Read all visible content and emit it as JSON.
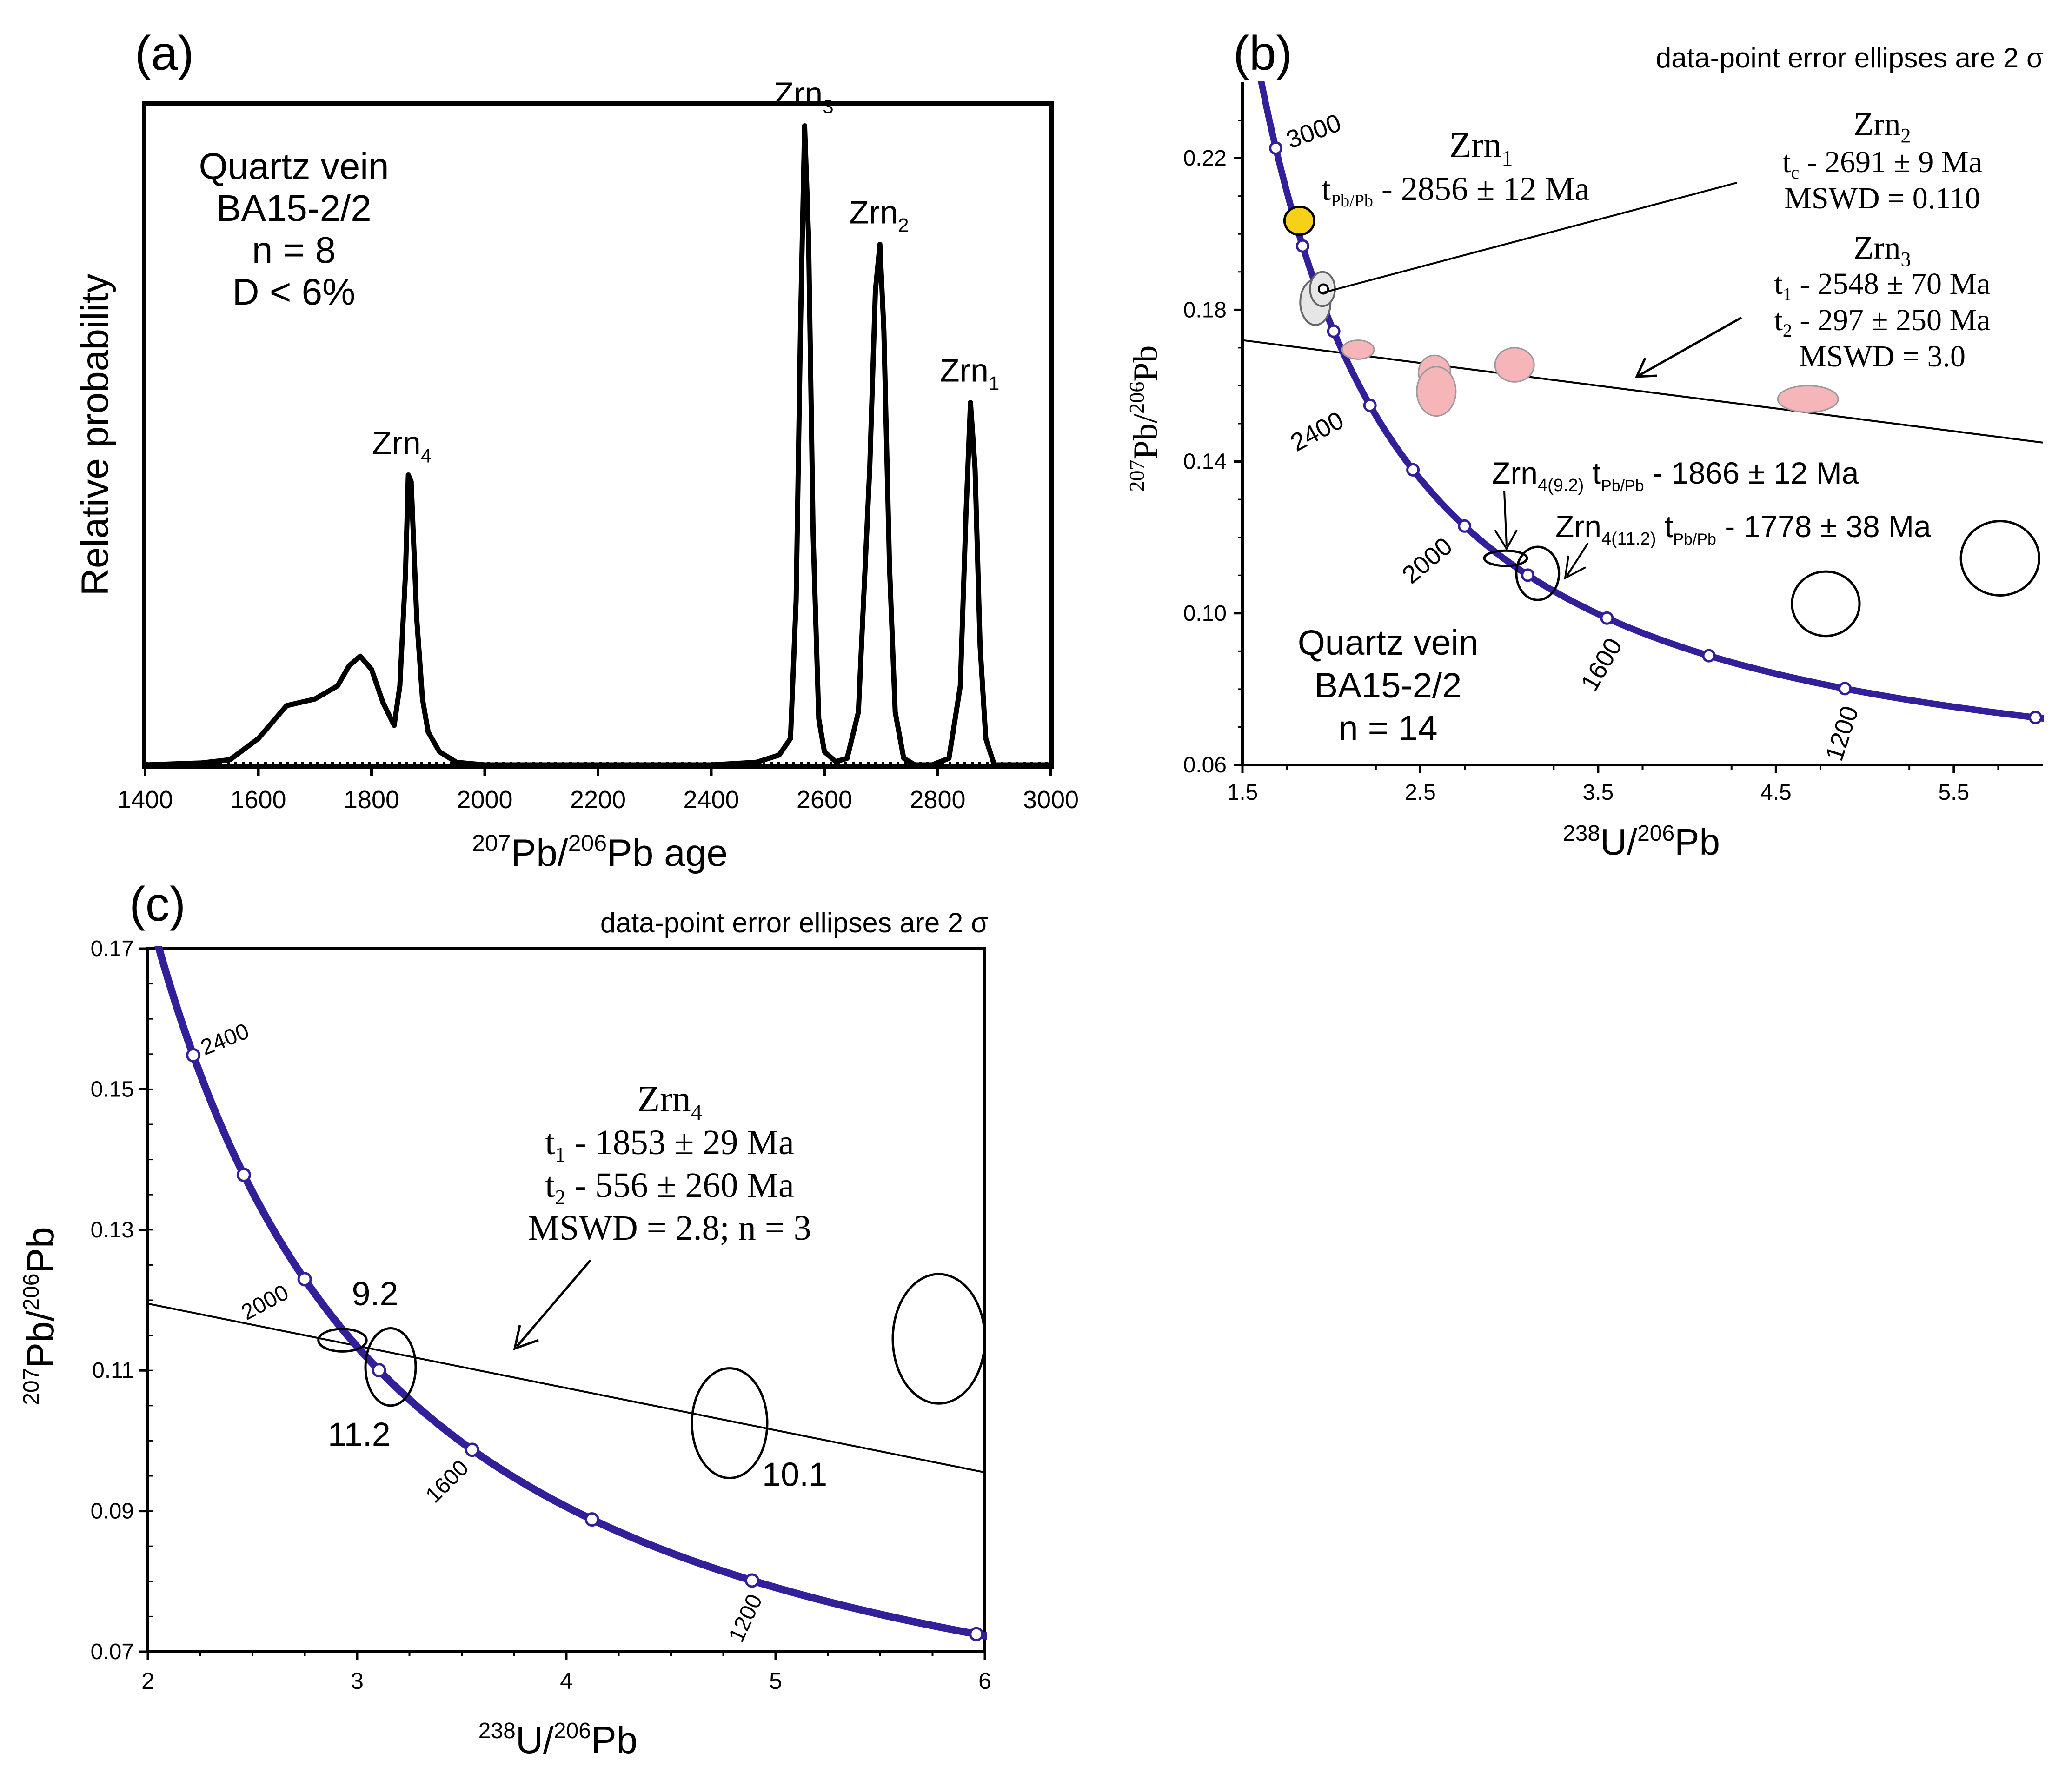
{
  "colors": {
    "curve": "#32209a",
    "pink": "#f6b5b8",
    "yellow": "#f7d117",
    "grey": "#e6e6e6",
    "ink": "#000000"
  },
  "chart_data": [
    {
      "id": "a",
      "type": "line",
      "panel_label": "(a)",
      "xlabel": {
        "sup1": "207",
        "a": "Pb/",
        "sup2": "206",
        "b": "Pb age"
      },
      "ylabel": "Relative probability",
      "xlim": [
        1400,
        3000
      ],
      "x_ticks": [
        1400,
        1600,
        1800,
        2000,
        2200,
        2400,
        2600,
        2800,
        3000
      ],
      "series": [
        {
          "name": "probability density",
          "x": [
            1400,
            1500,
            1550,
            1600,
            1650,
            1700,
            1740,
            1760,
            1780,
            1800,
            1820,
            1840,
            1850,
            1860,
            1865,
            1870,
            1880,
            1890,
            1900,
            1920,
            1950,
            2000,
            2400,
            2480,
            2520,
            2540,
            2550,
            2558,
            2565,
            2572,
            2580,
            2590,
            2600,
            2620,
            2640,
            2660,
            2680,
            2690,
            2698,
            2705,
            2715,
            2725,
            2740,
            2760,
            2790,
            2820,
            2840,
            2850,
            2858,
            2866,
            2875,
            2885,
            2900,
            2950,
            3000
          ],
          "y": [
            0,
            0.003,
            0.008,
            0.04,
            0.09,
            0.1,
            0.12,
            0.15,
            0.165,
            0.145,
            0.095,
            0.06,
            0.12,
            0.29,
            0.44,
            0.43,
            0.22,
            0.1,
            0.05,
            0.02,
            0.004,
            0,
            0,
            0.004,
            0.015,
            0.04,
            0.25,
            0.68,
            0.97,
            0.8,
            0.35,
            0.07,
            0.02,
            0.005,
            0.01,
            0.08,
            0.45,
            0.72,
            0.79,
            0.66,
            0.3,
            0.08,
            0.01,
            0,
            0,
            0.01,
            0.12,
            0.38,
            0.55,
            0.45,
            0.18,
            0.04,
            0,
            0,
            0
          ]
        }
      ],
      "peak_labels": [
        {
          "base": "Zrn",
          "sub": "4",
          "x": 1855,
          "y": 0.44
        },
        {
          "base": "Zrn",
          "sub": "3",
          "x": 2565,
          "y": 0.97
        },
        {
          "base": "Zrn",
          "sub": "2",
          "x": 2698,
          "y": 0.79
        },
        {
          "base": "Zrn",
          "sub": "1",
          "x": 2858,
          "y": 0.55
        }
      ],
      "annotation": [
        "Quartz vein",
        "BA15-2/2",
        "n = 8",
        "D < 6%"
      ]
    },
    {
      "id": "b",
      "type": "scatter",
      "panel_label": "(b)",
      "header": "data-point error ellipses are 2 σ",
      "xlabel": {
        "sup1": "238",
        "a": "U/",
        "sup2": "206",
        "b": "Pb"
      },
      "ylabel": {
        "sup1": "207",
        "a": "Pb/",
        "sup2": "206",
        "b": "Pb"
      },
      "xlim": [
        1.5,
        6.0
      ],
      "ylim": [
        0.06,
        0.24
      ],
      "x_ticks": [
        1.5,
        2.5,
        3.5,
        4.5,
        5.5
      ],
      "y_ticks": [
        0.06,
        0.1,
        0.14,
        0.18,
        0.22
      ],
      "concordia_ages": [
        3000,
        2800,
        2600,
        2400,
        2200,
        2000,
        1800,
        1600,
        1400,
        1200,
        1000
      ],
      "concordia_labels": [
        "3000",
        "2400",
        "2000",
        "1600",
        "1200"
      ],
      "discordia_line": {
        "x": [
          1.5,
          6.0
        ],
        "y": [
          0.172,
          0.145
        ]
      },
      "ellipses_pink": [
        {
          "x": 2.15,
          "y": 0.1695,
          "rx": 0.09,
          "ry": 0.0025
        },
        {
          "x": 2.58,
          "y": 0.1635,
          "rx": 0.09,
          "ry": 0.0045
        },
        {
          "x": 2.59,
          "y": 0.1585,
          "rx": 0.11,
          "ry": 0.0065
        },
        {
          "x": 3.03,
          "y": 0.1655,
          "rx": 0.11,
          "ry": 0.0045
        },
        {
          "x": 4.68,
          "y": 0.1565,
          "rx": 0.17,
          "ry": 0.0035
        }
      ],
      "ellipses_grey": [
        {
          "x": 1.91,
          "y": 0.182,
          "rx": 0.085,
          "ry": 0.006
        },
        {
          "x": 1.95,
          "y": 0.1855,
          "rx": 0.07,
          "ry": 0.0045
        }
      ],
      "point_yellow": {
        "x": 1.82,
        "y": 0.2035
      },
      "ellipses_open": [
        {
          "x": 2.98,
          "y": 0.1145,
          "rx": 0.12,
          "ry": 0.002
        },
        {
          "x": 3.16,
          "y": 0.1105,
          "rx": 0.12,
          "ry": 0.007
        },
        {
          "x": 4.78,
          "y": 0.1025,
          "rx": 0.19,
          "ry": 0.0085
        },
        {
          "x": 5.76,
          "y": 0.1145,
          "rx": 0.22,
          "ry": 0.0098
        }
      ],
      "annotation": [
        "Quartz vein",
        "BA15-2/2",
        "n = 14"
      ],
      "zrn1": {
        "base": "Zrn",
        "sub": "1",
        "t": "t",
        "tsub": "Pb/Pb",
        "value": " - 2856 ± 12 Ma"
      },
      "zrn2": {
        "base": "Zrn",
        "sub": "2",
        "t": "t",
        "tsub": "c",
        "value": " - 2691 ± 9 Ma",
        "mswd": "MSWD = 0.110"
      },
      "zrn3": {
        "base": "Zrn",
        "sub": "3",
        "t1": "t",
        "t1sub": "1",
        "t1value": " - 2548 ± 70 Ma",
        "t2": "t",
        "t2sub": "2",
        "t2value": " - 297 ± 250 Ma",
        "mswd": "MSWD = 3.0"
      },
      "zrn4a": {
        "base": "Zrn",
        "sub": "4(9.2)",
        "t": " t",
        "tsub": "Pb/Pb",
        "value": " - 1866 ± 12 Ma"
      },
      "zrn4b": {
        "base": "Zrn",
        "sub": "4(11.2)",
        "t": " t",
        "tsub": "Pb/Pb",
        "value": " - 1778 ± 38 Ma"
      }
    },
    {
      "id": "c",
      "type": "scatter",
      "panel_label": "(c)",
      "header": "data-point error ellipses are 2 σ",
      "xlabel": {
        "sup1": "238",
        "a": "U/",
        "sup2": "206",
        "b": "Pb"
      },
      "ylabel": {
        "sup1": "207",
        "a": "Pb/",
        "sup2": "206",
        "b": "Pb"
      },
      "xlim": [
        2,
        6
      ],
      "ylim": [
        0.07,
        0.17
      ],
      "x_ticks": [
        2,
        3,
        4,
        5,
        6
      ],
      "y_ticks": [
        0.07,
        0.09,
        0.11,
        0.13,
        0.15,
        0.17
      ],
      "concordia_ages": [
        2400,
        2200,
        2000,
        1800,
        1600,
        1400,
        1200,
        1000
      ],
      "concordia_labels": [
        "2400",
        "2000",
        "1600",
        "1200"
      ],
      "discordia_line": {
        "x": [
          2,
          6
        ],
        "y": [
          0.1195,
          0.0955
        ]
      },
      "ellipses_open": [
        {
          "x": 2.93,
          "y": 0.1143,
          "rx": 0.115,
          "ry": 0.0016,
          "label": "9.2"
        },
        {
          "x": 3.16,
          "y": 0.1105,
          "rx": 0.12,
          "ry": 0.0055,
          "label": "11.2"
        },
        {
          "x": 4.78,
          "y": 0.1025,
          "rx": 0.18,
          "ry": 0.0078,
          "label": "10.1"
        },
        {
          "x": 5.78,
          "y": 0.1145,
          "rx": 0.22,
          "ry": 0.0092,
          "label": ""
        }
      ],
      "zrn4": {
        "base": "Zrn",
        "sub": "4",
        "t1": "t",
        "t1sub": "1",
        "t1value": " - 1853 ± 29 Ma",
        "t2": "t",
        "t2sub": "2",
        "t2value": " - 556 ± 260 Ma",
        "mswd": "MSWD = 2.8; n = 3"
      }
    }
  ]
}
